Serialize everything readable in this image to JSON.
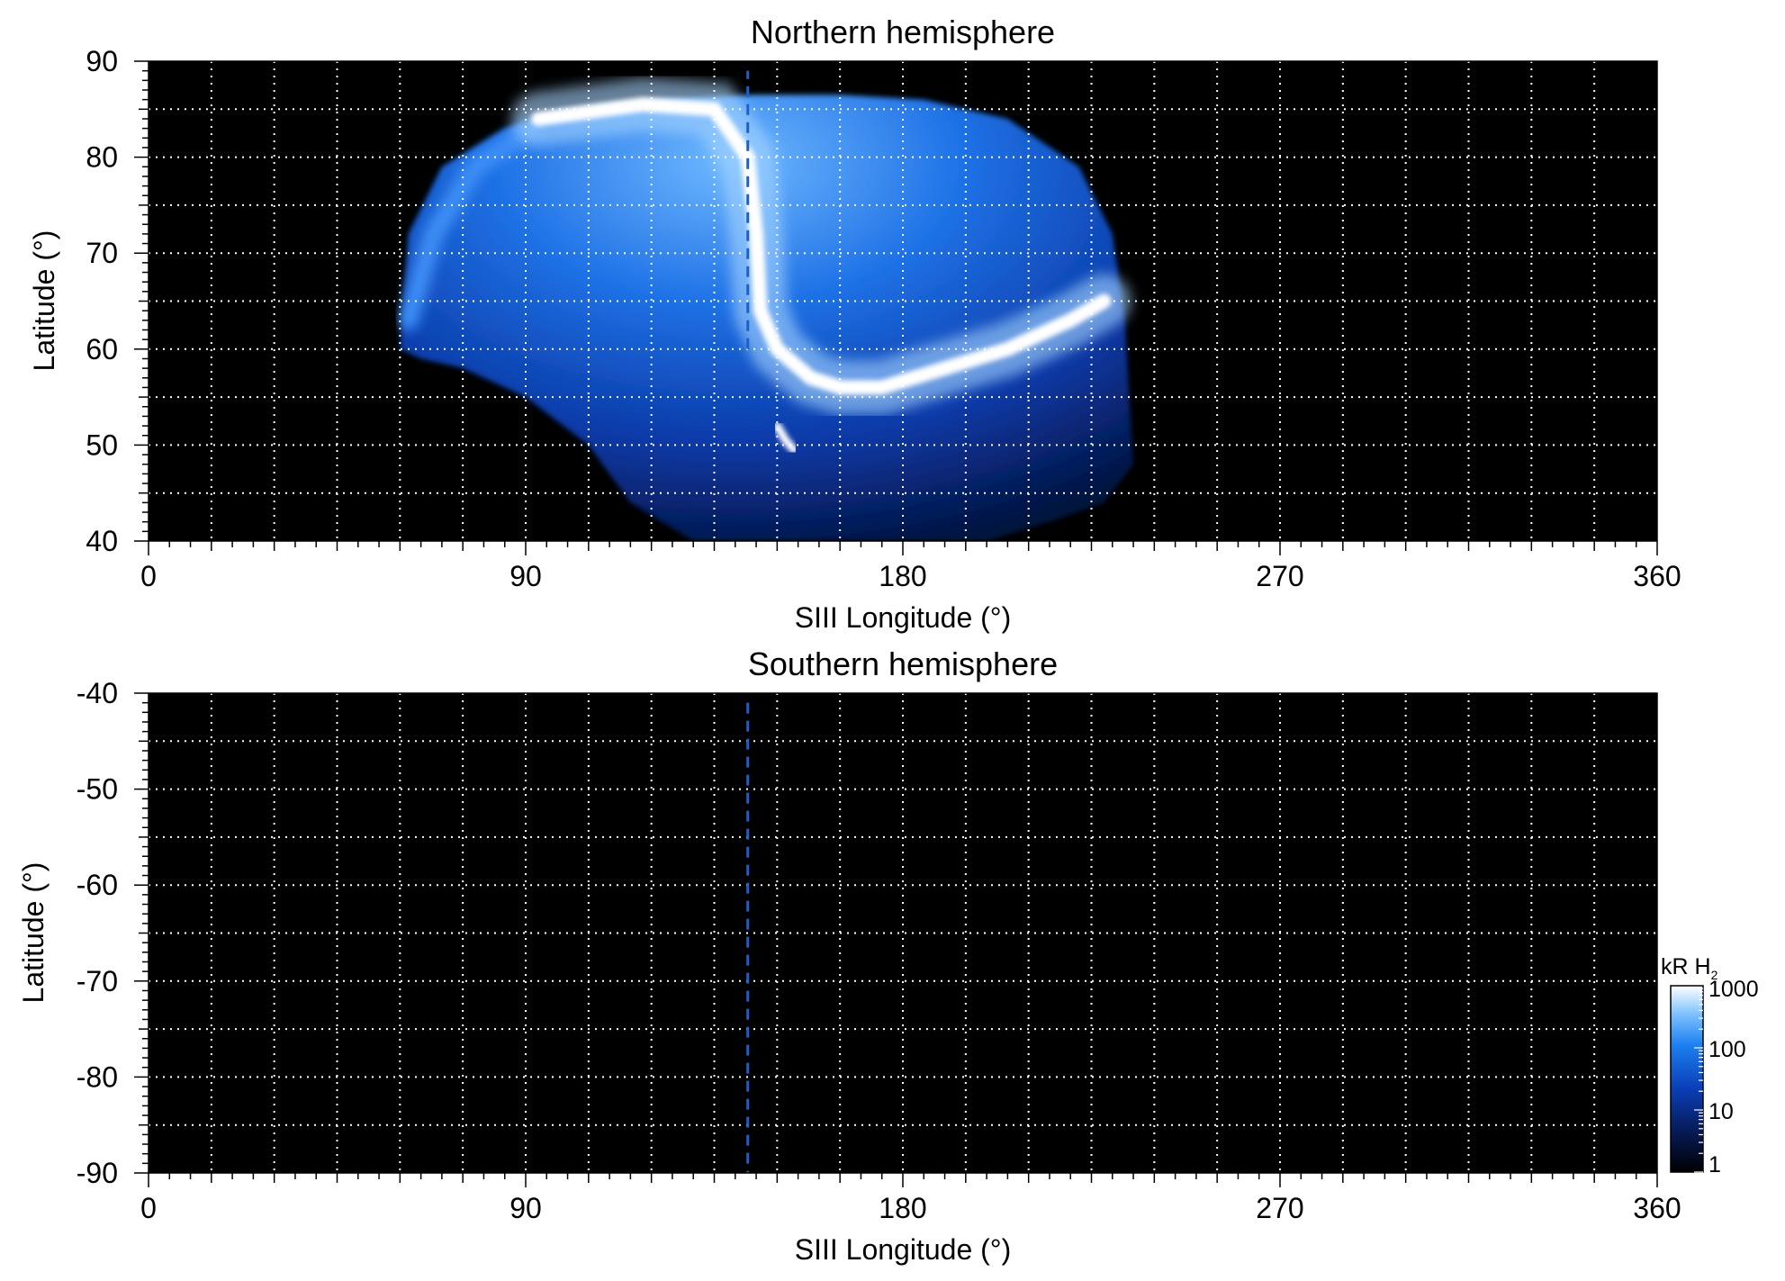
{
  "chart_data": [
    {
      "type": "heatmap",
      "title": "Northern hemisphere",
      "xlabel": "SIII Longitude (°)",
      "ylabel": "Latitude (°)",
      "xlim": [
        0,
        360
      ],
      "ylim": [
        40,
        90
      ],
      "xticks": [
        0,
        90,
        180,
        270,
        360
      ],
      "yticks": [
        40,
        50,
        60,
        70,
        80,
        90
      ],
      "grid": true,
      "grid_style": "dotted",
      "grid_x_step": 15,
      "grid_y_step": 5,
      "background_color": "#000000",
      "dashed_line_longitude": 143,
      "dashed_line_lat_range": [
        60,
        89
      ],
      "dashed_line_color": "#1f5fcc",
      "emission_region": {
        "boundary": [
          [
            60,
            60
          ],
          [
            62,
            72
          ],
          [
            70,
            79
          ],
          [
            85,
            83
          ],
          [
            100,
            85
          ],
          [
            120,
            86
          ],
          [
            145,
            86.5
          ],
          [
            165,
            86.5
          ],
          [
            185,
            86
          ],
          [
            205,
            84
          ],
          [
            222,
            79
          ],
          [
            230,
            72
          ],
          [
            233,
            63
          ],
          [
            234,
            55
          ],
          [
            235,
            48
          ],
          [
            228,
            44
          ],
          [
            215,
            42
          ],
          [
            200,
            40
          ],
          [
            160,
            40
          ],
          [
            130,
            40
          ],
          [
            115,
            44
          ],
          [
            105,
            50
          ],
          [
            90,
            55
          ],
          [
            75,
            58
          ],
          [
            65,
            59
          ]
        ],
        "main_oval": [
          [
            93,
            84
          ],
          [
            118,
            85.5
          ],
          [
            135,
            85
          ],
          [
            143,
            80
          ],
          [
            145,
            72
          ],
          [
            146,
            64
          ],
          [
            150,
            60
          ],
          [
            158,
            57
          ],
          [
            165,
            56
          ],
          [
            175,
            56
          ],
          [
            190,
            58
          ],
          [
            205,
            60
          ],
          [
            220,
            63
          ],
          [
            228,
            65
          ]
        ],
        "secondary_arc": [
          [
            150,
            52
          ],
          [
            152,
            50.5
          ],
          [
            154,
            49.5
          ]
        ],
        "outer_arc": [
          [
            62,
            63
          ],
          [
            68,
            72
          ],
          [
            78,
            79
          ],
          [
            92,
            83
          ]
        ]
      }
    },
    {
      "type": "heatmap",
      "title": "Southern hemisphere",
      "xlabel": "SIII Longitude (°)",
      "ylabel": "Latitude (°)",
      "xlim": [
        0,
        360
      ],
      "ylim": [
        -90,
        -40
      ],
      "xticks": [
        0,
        90,
        180,
        270,
        360
      ],
      "yticks": [
        -40,
        -50,
        -60,
        -70,
        -80,
        -90
      ],
      "grid": true,
      "grid_style": "dotted",
      "grid_x_step": 15,
      "grid_y_step": 5,
      "background_color": "#000000",
      "dashed_line_longitude": 143,
      "dashed_line_lat_range": [
        -41,
        -90
      ],
      "dashed_line_color": "#1f5fcc"
    }
  ],
  "colorbar": {
    "label_main": "kR H",
    "label_sub": "2",
    "scale": "log",
    "range": [
      1,
      1000
    ],
    "ticks": [
      1,
      10,
      100,
      1000
    ],
    "colors": [
      "#000000",
      "#06184f",
      "#0a3fb8",
      "#1c7ff0",
      "#7fc2ff",
      "#ffffff"
    ]
  }
}
